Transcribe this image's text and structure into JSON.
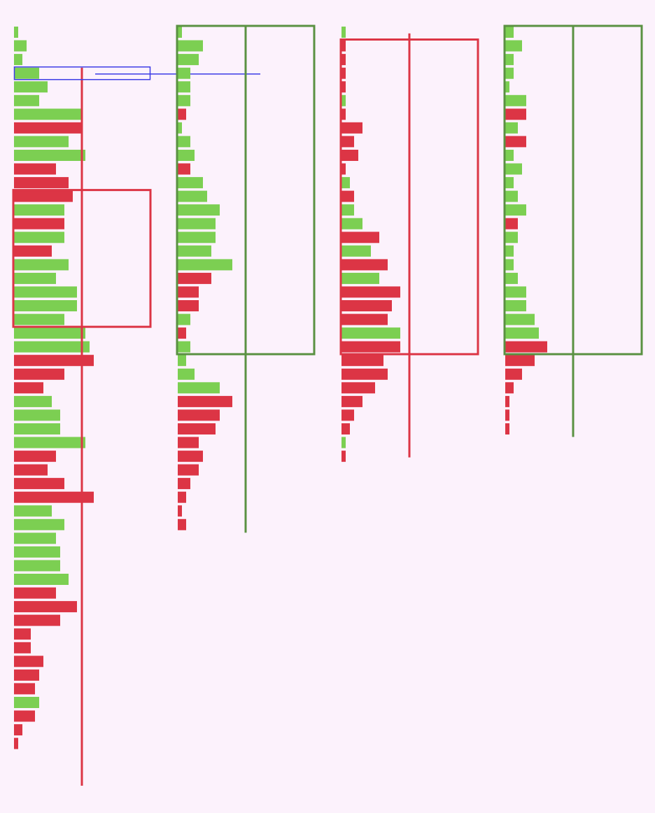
{
  "colors": {
    "background": "#fcf2fc",
    "up": "#7ccf52",
    "down": "#dc3545",
    "up_box": "#5a9142",
    "down_box": "#dc3545",
    "highlight": "#3b3be6"
  },
  "chart_data": {
    "type": "bar",
    "subtype": "volume-profile-columns",
    "orientation": "horizontal",
    "title": "",
    "xlabel": "",
    "ylabel": "",
    "grid": false,
    "legend": "none",
    "columns": [
      {
        "box": {
          "color": "down",
          "start_row": 12,
          "end_row": 22
        },
        "wick": {
          "start_row": 3,
          "end_row": 55.5
        },
        "highlight_row": 3,
        "bars": [
          [
            "up",
            1
          ],
          [
            "up",
            3
          ],
          [
            "up",
            2
          ],
          [
            "up",
            6
          ],
          [
            "up",
            8
          ],
          [
            "up",
            6
          ],
          [
            "up",
            16
          ],
          [
            "down",
            16
          ],
          [
            "up",
            13
          ],
          [
            "up",
            17
          ],
          [
            "down",
            10
          ],
          [
            "down",
            13
          ],
          [
            "down",
            14
          ],
          [
            "up",
            12
          ],
          [
            "down",
            12
          ],
          [
            "up",
            12
          ],
          [
            "down",
            9
          ],
          [
            "up",
            13
          ],
          [
            "up",
            10
          ],
          [
            "up",
            15
          ],
          [
            "up",
            15
          ],
          [
            "up",
            12
          ],
          [
            "up",
            17
          ],
          [
            "up",
            18
          ],
          [
            "down",
            19
          ],
          [
            "down",
            12
          ],
          [
            "down",
            7
          ],
          [
            "up",
            9
          ],
          [
            "up",
            11
          ],
          [
            "up",
            11
          ],
          [
            "up",
            17
          ],
          [
            "down",
            10
          ],
          [
            "down",
            8
          ],
          [
            "down",
            12
          ],
          [
            "down",
            19
          ],
          [
            "up",
            9
          ],
          [
            "up",
            12
          ],
          [
            "up",
            10
          ],
          [
            "up",
            11
          ],
          [
            "up",
            11
          ],
          [
            "up",
            13
          ],
          [
            "down",
            10
          ],
          [
            "down",
            15
          ],
          [
            "down",
            11
          ],
          [
            "down",
            4
          ],
          [
            "down",
            4
          ],
          [
            "down",
            7
          ],
          [
            "down",
            6
          ],
          [
            "down",
            5
          ],
          [
            "up",
            6
          ],
          [
            "down",
            5
          ],
          [
            "down",
            2
          ],
          [
            "down",
            1
          ]
        ]
      },
      {
        "box": {
          "color": "up",
          "start_row": 0,
          "end_row": 24
        },
        "wick": {
          "start_row": 0,
          "end_row": 37
        },
        "bars": [
          [
            "up",
            1
          ],
          [
            "up",
            6
          ],
          [
            "up",
            5
          ],
          [
            "up",
            3
          ],
          [
            "up",
            3
          ],
          [
            "up",
            3
          ],
          [
            "down",
            2
          ],
          [
            "up",
            1
          ],
          [
            "up",
            3
          ],
          [
            "up",
            4
          ],
          [
            "down",
            3
          ],
          [
            "up",
            6
          ],
          [
            "up",
            7
          ],
          [
            "up",
            10
          ],
          [
            "up",
            9
          ],
          [
            "up",
            9
          ],
          [
            "up",
            8
          ],
          [
            "up",
            13
          ],
          [
            "down",
            8
          ],
          [
            "down",
            5
          ],
          [
            "down",
            5
          ],
          [
            "up",
            3
          ],
          [
            "down",
            2
          ],
          [
            "up",
            3
          ],
          [
            "up",
            2
          ],
          [
            "up",
            4
          ],
          [
            "up",
            10
          ],
          [
            "down",
            13
          ],
          [
            "down",
            10
          ],
          [
            "down",
            9
          ],
          [
            "down",
            5
          ],
          [
            "down",
            6
          ],
          [
            "down",
            5
          ],
          [
            "down",
            3
          ],
          [
            "down",
            2
          ],
          [
            "down",
            1
          ],
          [
            "down",
            2
          ]
        ]
      },
      {
        "box": {
          "color": "down",
          "start_row": 1,
          "end_row": 24
        },
        "wick": {
          "start_row": 0.5,
          "end_row": 31.5
        },
        "bars": [
          [
            "up",
            1
          ],
          [
            "down",
            1
          ],
          [
            "down",
            1
          ],
          [
            "down",
            1
          ],
          [
            "down",
            1
          ],
          [
            "up",
            1
          ],
          [
            "down",
            1
          ],
          [
            "down",
            5
          ],
          [
            "down",
            3
          ],
          [
            "down",
            4
          ],
          [
            "down",
            1
          ],
          [
            "up",
            2
          ],
          [
            "down",
            3
          ],
          [
            "up",
            3
          ],
          [
            "up",
            5
          ],
          [
            "down",
            9
          ],
          [
            "up",
            7
          ],
          [
            "down",
            11
          ],
          [
            "up",
            9
          ],
          [
            "down",
            14
          ],
          [
            "down",
            12
          ],
          [
            "down",
            11
          ],
          [
            "up",
            14
          ],
          [
            "down",
            14
          ],
          [
            "down",
            10
          ],
          [
            "down",
            11
          ],
          [
            "down",
            8
          ],
          [
            "down",
            5
          ],
          [
            "down",
            3
          ],
          [
            "down",
            2
          ],
          [
            "up",
            1
          ],
          [
            "down",
            1
          ]
        ]
      },
      {
        "box": {
          "color": "up",
          "start_row": 0,
          "end_row": 24
        },
        "wick": {
          "start_row": 0,
          "end_row": 30
        },
        "bars": [
          [
            "up",
            2
          ],
          [
            "up",
            4
          ],
          [
            "up",
            2
          ],
          [
            "up",
            2
          ],
          [
            "up",
            1
          ],
          [
            "up",
            5
          ],
          [
            "down",
            5
          ],
          [
            "up",
            3
          ],
          [
            "down",
            5
          ],
          [
            "up",
            2
          ],
          [
            "up",
            4
          ],
          [
            "up",
            2
          ],
          [
            "up",
            3
          ],
          [
            "up",
            5
          ],
          [
            "down",
            3
          ],
          [
            "up",
            3
          ],
          [
            "up",
            2
          ],
          [
            "up",
            2
          ],
          [
            "up",
            3
          ],
          [
            "up",
            5
          ],
          [
            "up",
            5
          ],
          [
            "up",
            7
          ],
          [
            "up",
            8
          ],
          [
            "down",
            10
          ],
          [
            "down",
            7
          ],
          [
            "down",
            4
          ],
          [
            "down",
            2
          ],
          [
            "down",
            1
          ],
          [
            "down",
            1
          ],
          [
            "down",
            1
          ]
        ]
      }
    ]
  }
}
